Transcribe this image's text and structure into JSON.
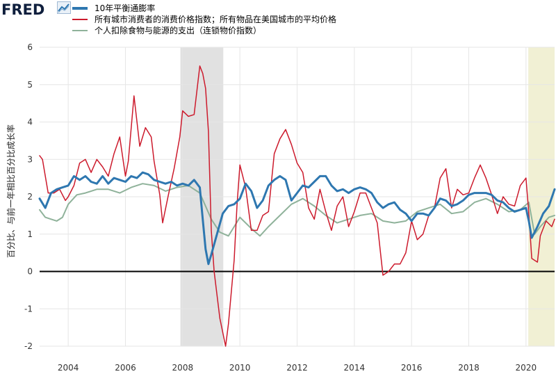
{
  "header": {
    "logo_text": "FRED",
    "logo_mark_icon": "fred-chart-icon"
  },
  "colors": {
    "series_blue": "#2e77b0",
    "series_red": "#cc1a2c",
    "series_green": "#8fb29a",
    "recession": "#e1e1e1",
    "covid": "#f1f0d4",
    "grid": "#e6e6e6",
    "zero_line": "#000000"
  },
  "chart_data": {
    "type": "line",
    "ylabel": "百分比、与前一年相比百分比成长率",
    "ylim": [
      -2,
      6
    ],
    "xlim": [
      2003.0,
      2021.0
    ],
    "x_ticks": [
      "2004",
      "2006",
      "2008",
      "2010",
      "2012",
      "2014",
      "2016",
      "2018",
      "2020"
    ],
    "y_ticks": [
      "6",
      "5",
      "4",
      "3",
      "2",
      "1",
      "0",
      "-1",
      "-2"
    ],
    "grid": true,
    "legend_position": "top-left",
    "shaded_periods": [
      {
        "start": 2007.92,
        "end": 2009.42,
        "kind": "recession"
      },
      {
        "start": 2020.08,
        "end": 2021.0,
        "kind": "highlight"
      }
    ],
    "series": [
      {
        "name": "10年平衡通膨率",
        "color": "#2e77b0",
        "width": 3,
        "points": [
          [
            2003.0,
            1.95
          ],
          [
            2003.2,
            1.7
          ],
          [
            2003.4,
            2.1
          ],
          [
            2003.6,
            2.2
          ],
          [
            2003.8,
            2.25
          ],
          [
            2004.0,
            2.3
          ],
          [
            2004.2,
            2.55
          ],
          [
            2004.4,
            2.45
          ],
          [
            2004.6,
            2.55
          ],
          [
            2004.8,
            2.4
          ],
          [
            2005.0,
            2.35
          ],
          [
            2005.2,
            2.55
          ],
          [
            2005.4,
            2.35
          ],
          [
            2005.6,
            2.5
          ],
          [
            2005.8,
            2.45
          ],
          [
            2006.0,
            2.4
          ],
          [
            2006.2,
            2.55
          ],
          [
            2006.4,
            2.5
          ],
          [
            2006.6,
            2.65
          ],
          [
            2006.8,
            2.6
          ],
          [
            2007.0,
            2.45
          ],
          [
            2007.2,
            2.4
          ],
          [
            2007.4,
            2.35
          ],
          [
            2007.6,
            2.4
          ],
          [
            2007.8,
            2.3
          ],
          [
            2008.0,
            2.35
          ],
          [
            2008.2,
            2.3
          ],
          [
            2008.4,
            2.45
          ],
          [
            2008.6,
            2.25
          ],
          [
            2008.7,
            1.4
          ],
          [
            2008.8,
            0.6
          ],
          [
            2008.9,
            0.2
          ],
          [
            2009.0,
            0.45
          ],
          [
            2009.2,
            1.0
          ],
          [
            2009.4,
            1.55
          ],
          [
            2009.6,
            1.75
          ],
          [
            2009.8,
            1.8
          ],
          [
            2010.0,
            1.95
          ],
          [
            2010.2,
            2.35
          ],
          [
            2010.4,
            2.15
          ],
          [
            2010.6,
            1.7
          ],
          [
            2010.8,
            1.9
          ],
          [
            2011.0,
            2.3
          ],
          [
            2011.2,
            2.45
          ],
          [
            2011.4,
            2.55
          ],
          [
            2011.6,
            2.45
          ],
          [
            2011.8,
            1.9
          ],
          [
            2012.0,
            2.1
          ],
          [
            2012.2,
            2.3
          ],
          [
            2012.4,
            2.25
          ],
          [
            2012.6,
            2.4
          ],
          [
            2012.8,
            2.55
          ],
          [
            2013.0,
            2.55
          ],
          [
            2013.2,
            2.3
          ],
          [
            2013.4,
            2.15
          ],
          [
            2013.6,
            2.2
          ],
          [
            2013.8,
            2.1
          ],
          [
            2014.0,
            2.2
          ],
          [
            2014.2,
            2.25
          ],
          [
            2014.4,
            2.2
          ],
          [
            2014.6,
            2.1
          ],
          [
            2014.8,
            1.85
          ],
          [
            2015.0,
            1.7
          ],
          [
            2015.2,
            1.8
          ],
          [
            2015.4,
            1.85
          ],
          [
            2015.6,
            1.65
          ],
          [
            2015.8,
            1.55
          ],
          [
            2016.0,
            1.35
          ],
          [
            2016.2,
            1.55
          ],
          [
            2016.4,
            1.55
          ],
          [
            2016.6,
            1.5
          ],
          [
            2016.8,
            1.7
          ],
          [
            2017.0,
            1.95
          ],
          [
            2017.2,
            1.9
          ],
          [
            2017.4,
            1.75
          ],
          [
            2017.6,
            1.8
          ],
          [
            2017.8,
            1.9
          ],
          [
            2018.0,
            2.05
          ],
          [
            2018.2,
            2.1
          ],
          [
            2018.4,
            2.1
          ],
          [
            2018.6,
            2.1
          ],
          [
            2018.8,
            2.05
          ],
          [
            2019.0,
            1.9
          ],
          [
            2019.2,
            1.85
          ],
          [
            2019.4,
            1.7
          ],
          [
            2019.6,
            1.6
          ],
          [
            2019.8,
            1.65
          ],
          [
            2020.0,
            1.7
          ],
          [
            2020.1,
            1.35
          ],
          [
            2020.2,
            0.9
          ],
          [
            2020.4,
            1.2
          ],
          [
            2020.6,
            1.55
          ],
          [
            2020.8,
            1.75
          ],
          [
            2021.0,
            2.2
          ]
        ]
      },
      {
        "name": "所有城市消费者的消费价格指数；所有物品在美国城市的平均价格",
        "color": "#cc1a2c",
        "width": 1.5,
        "points": [
          [
            2003.0,
            3.1
          ],
          [
            2003.1,
            3.0
          ],
          [
            2003.3,
            2.1
          ],
          [
            2003.5,
            2.1
          ],
          [
            2003.7,
            2.2
          ],
          [
            2003.9,
            1.9
          ],
          [
            2004.0,
            2.0
          ],
          [
            2004.2,
            2.3
          ],
          [
            2004.4,
            2.9
          ],
          [
            2004.6,
            3.0
          ],
          [
            2004.8,
            2.65
          ],
          [
            2005.0,
            3.0
          ],
          [
            2005.2,
            2.8
          ],
          [
            2005.4,
            2.55
          ],
          [
            2005.6,
            3.15
          ],
          [
            2005.8,
            3.6
          ],
          [
            2006.0,
            2.55
          ],
          [
            2006.1,
            2.95
          ],
          [
            2006.3,
            4.7
          ],
          [
            2006.5,
            3.35
          ],
          [
            2006.7,
            3.85
          ],
          [
            2006.9,
            3.6
          ],
          [
            2007.0,
            2.95
          ],
          [
            2007.2,
            2.05
          ],
          [
            2007.3,
            1.3
          ],
          [
            2007.5,
            2.05
          ],
          [
            2007.7,
            2.75
          ],
          [
            2007.9,
            3.6
          ],
          [
            2008.0,
            4.3
          ],
          [
            2008.2,
            4.15
          ],
          [
            2008.4,
            4.2
          ],
          [
            2008.6,
            5.5
          ],
          [
            2008.7,
            5.3
          ],
          [
            2008.8,
            4.9
          ],
          [
            2008.9,
            3.75
          ],
          [
            2009.0,
            1.1
          ],
          [
            2009.1,
            0.0
          ],
          [
            2009.3,
            -1.25
          ],
          [
            2009.5,
            -2.0
          ],
          [
            2009.6,
            -1.4
          ],
          [
            2009.8,
            0.3
          ],
          [
            2009.9,
            1.8
          ],
          [
            2010.0,
            2.85
          ],
          [
            2010.2,
            2.25
          ],
          [
            2010.4,
            1.1
          ],
          [
            2010.6,
            1.1
          ],
          [
            2010.8,
            1.5
          ],
          [
            2011.0,
            1.6
          ],
          [
            2011.2,
            3.15
          ],
          [
            2011.4,
            3.55
          ],
          [
            2011.6,
            3.8
          ],
          [
            2011.8,
            3.4
          ],
          [
            2012.0,
            2.9
          ],
          [
            2012.2,
            2.65
          ],
          [
            2012.4,
            1.7
          ],
          [
            2012.6,
            1.4
          ],
          [
            2012.8,
            2.2
          ],
          [
            2013.0,
            1.6
          ],
          [
            2013.2,
            1.1
          ],
          [
            2013.4,
            1.75
          ],
          [
            2013.6,
            2.0
          ],
          [
            2013.8,
            1.2
          ],
          [
            2014.0,
            1.6
          ],
          [
            2014.2,
            2.1
          ],
          [
            2014.4,
            2.1
          ],
          [
            2014.6,
            1.7
          ],
          [
            2014.8,
            1.3
          ],
          [
            2015.0,
            -0.1
          ],
          [
            2015.2,
            0.0
          ],
          [
            2015.4,
            0.2
          ],
          [
            2015.6,
            0.2
          ],
          [
            2015.8,
            0.5
          ],
          [
            2016.0,
            1.35
          ],
          [
            2016.2,
            0.85
          ],
          [
            2016.4,
            1.0
          ],
          [
            2016.6,
            1.5
          ],
          [
            2016.8,
            1.7
          ],
          [
            2017.0,
            2.5
          ],
          [
            2017.2,
            2.75
          ],
          [
            2017.4,
            1.7
          ],
          [
            2017.6,
            2.2
          ],
          [
            2017.8,
            2.05
          ],
          [
            2018.0,
            2.1
          ],
          [
            2018.2,
            2.5
          ],
          [
            2018.4,
            2.85
          ],
          [
            2018.6,
            2.5
          ],
          [
            2018.8,
            2.05
          ],
          [
            2019.0,
            1.55
          ],
          [
            2019.2,
            2.0
          ],
          [
            2019.4,
            1.8
          ],
          [
            2019.6,
            1.75
          ],
          [
            2019.8,
            2.3
          ],
          [
            2020.0,
            2.5
          ],
          [
            2020.1,
            1.55
          ],
          [
            2020.2,
            0.35
          ],
          [
            2020.4,
            0.25
          ],
          [
            2020.5,
            0.95
          ],
          [
            2020.7,
            1.35
          ],
          [
            2020.9,
            1.2
          ],
          [
            2021.0,
            1.4
          ]
        ]
      },
      {
        "name": "个人扣除食物与能源的支出（连锁物价指数）",
        "color": "#8fb29a",
        "width": 2,
        "points": [
          [
            2003.0,
            1.65
          ],
          [
            2003.2,
            1.45
          ],
          [
            2003.4,
            1.4
          ],
          [
            2003.6,
            1.35
          ],
          [
            2003.8,
            1.45
          ],
          [
            2004.0,
            1.8
          ],
          [
            2004.3,
            2.05
          ],
          [
            2004.6,
            2.1
          ],
          [
            2005.0,
            2.2
          ],
          [
            2005.4,
            2.2
          ],
          [
            2005.8,
            2.1
          ],
          [
            2006.2,
            2.25
          ],
          [
            2006.6,
            2.35
          ],
          [
            2007.0,
            2.3
          ],
          [
            2007.4,
            2.15
          ],
          [
            2007.8,
            2.25
          ],
          [
            2008.2,
            2.3
          ],
          [
            2008.6,
            2.1
          ],
          [
            2009.0,
            1.4
          ],
          [
            2009.3,
            1.05
          ],
          [
            2009.6,
            0.95
          ],
          [
            2010.0,
            1.45
          ],
          [
            2010.4,
            1.15
          ],
          [
            2010.7,
            0.95
          ],
          [
            2011.0,
            1.2
          ],
          [
            2011.4,
            1.5
          ],
          [
            2011.8,
            1.8
          ],
          [
            2012.2,
            1.95
          ],
          [
            2012.6,
            1.75
          ],
          [
            2013.0,
            1.5
          ],
          [
            2013.4,
            1.3
          ],
          [
            2013.8,
            1.4
          ],
          [
            2014.2,
            1.5
          ],
          [
            2014.6,
            1.55
          ],
          [
            2015.0,
            1.35
          ],
          [
            2015.4,
            1.3
          ],
          [
            2015.8,
            1.35
          ],
          [
            2016.2,
            1.6
          ],
          [
            2016.6,
            1.7
          ],
          [
            2017.0,
            1.8
          ],
          [
            2017.4,
            1.55
          ],
          [
            2017.8,
            1.6
          ],
          [
            2018.2,
            1.85
          ],
          [
            2018.6,
            1.95
          ],
          [
            2019.0,
            1.8
          ],
          [
            2019.4,
            1.6
          ],
          [
            2019.8,
            1.65
          ],
          [
            2020.1,
            1.85
          ],
          [
            2020.3,
            1.0
          ],
          [
            2020.5,
            1.2
          ],
          [
            2020.8,
            1.45
          ],
          [
            2021.0,
            1.5
          ]
        ]
      }
    ]
  }
}
